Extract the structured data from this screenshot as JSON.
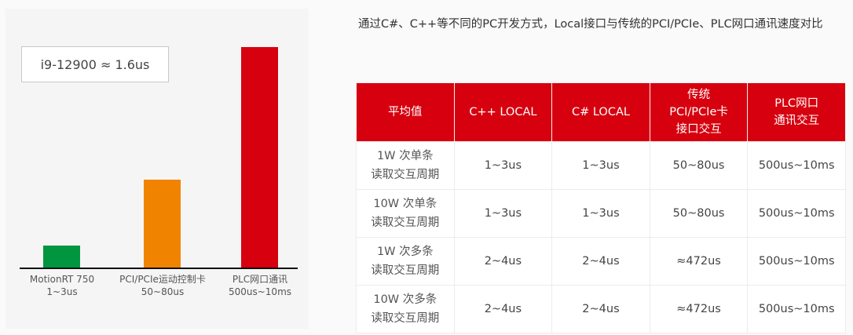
{
  "chart": {
    "note": "i9-12900 ≈ 1.6us",
    "colors": {
      "green": "#00963f",
      "orange": "#f08300",
      "red": "#d7000f"
    },
    "bars": [
      {
        "name": "MotionRT 750",
        "value": "1~3us"
      },
      {
        "name": "PCI/PCIe运动控制卡",
        "value": "50~80us"
      },
      {
        "name": "PLC网口通讯",
        "value": "500us~10ms"
      }
    ]
  },
  "intro": "通过C#、C++等不同的PC开发方式，Local接口与传统的PCI/PCIe、PLC网口通讯速度对比",
  "table": {
    "headers": [
      "平均值",
      "C++ LOCAL",
      "C# LOCAL",
      [
        "传统",
        "PCI/PCIe卡",
        "接口交互"
      ],
      [
        "PLC网口",
        "通讯交互"
      ]
    ],
    "rows": [
      {
        "label": [
          "1W 次单条",
          "读取交互周期"
        ],
        "cells": [
          "1~3us",
          "1~3us",
          "50~80us",
          "500us~10ms"
        ]
      },
      {
        "label": [
          "10W 次单条",
          "读取交互周期"
        ],
        "cells": [
          "1~3us",
          "1~3us",
          "50~80us",
          "500us~10ms"
        ]
      },
      {
        "label": [
          "1W 次多条",
          "读取交互周期"
        ],
        "cells": [
          "2~4us",
          "2~4us",
          "≈472us",
          "500us~10ms"
        ]
      },
      {
        "label": [
          "10W 次多条",
          "读取交互周期"
        ],
        "cells": [
          "2~4us",
          "2~4us",
          "≈472us",
          "500us~10ms"
        ]
      }
    ]
  }
}
